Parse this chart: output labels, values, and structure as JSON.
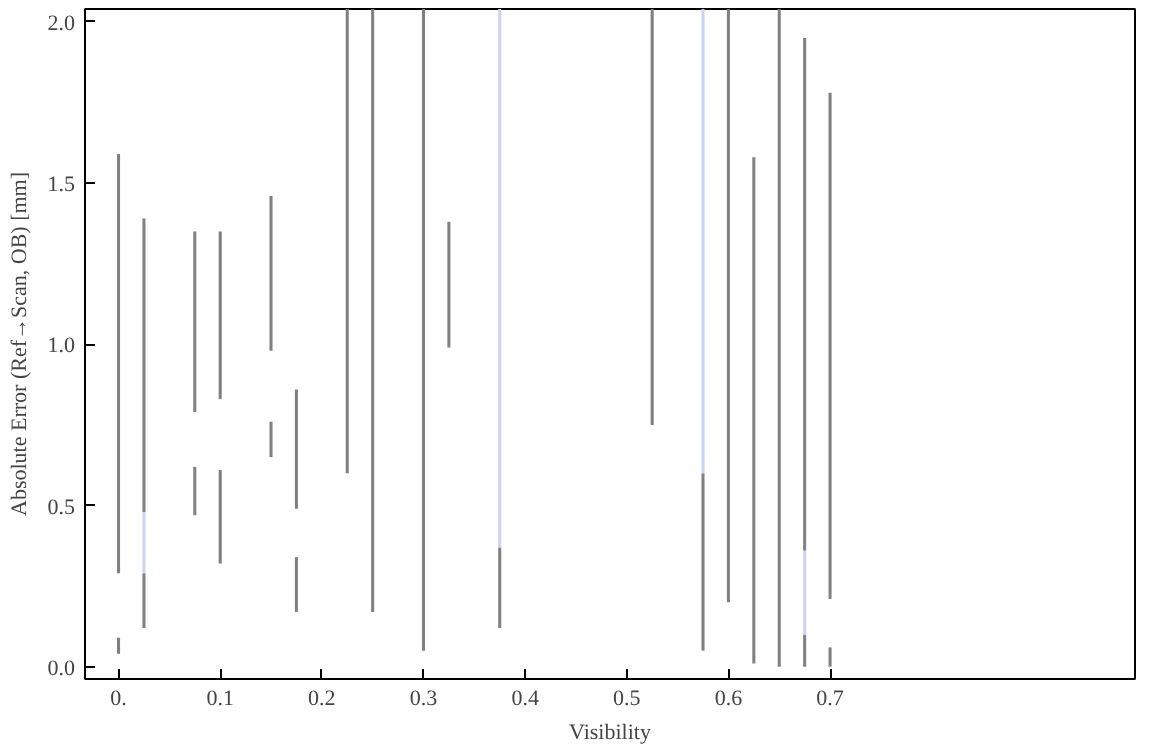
{
  "chart_data": {
    "type": "bar",
    "xlabel": "Visibility",
    "ylabel": "Absolute Error (Ref→Scan, OB) [mm]",
    "xlim": [
      -0.033,
      1.0
    ],
    "ylim": [
      -0.038,
      2.04
    ],
    "xticks": [
      {
        "value": 0,
        "label": "0."
      },
      0.1,
      0.2,
      0.3,
      0.4,
      0.5,
      0.6,
      0.7
    ],
    "yticks": [
      {
        "value": 0,
        "label": "0.0"
      },
      0.5,
      {
        "value": 1,
        "label": "1.0"
      },
      1.5,
      {
        "value": 2,
        "label": "2.0"
      }
    ],
    "grid": false,
    "series": [
      {
        "color": "#808080",
        "x": [
          0,
          0.025,
          0.075,
          0.1,
          0.15,
          0.175,
          0.225,
          0.25,
          0.3,
          0.325,
          0.525,
          0.6,
          0.625,
          0.65,
          0.675,
          0.7
        ],
        "base": [
          0.29,
          0.48,
          0.79,
          0.83,
          0.98,
          0.49,
          0.6,
          0.17,
          0.05,
          0.99,
          0.75,
          0.2,
          0.01,
          0.0,
          0.36,
          0.21
        ],
        "values": [
          1.3,
          0.91,
          0.56,
          0.52,
          0.48,
          0.37,
          1.44,
          1.87,
          1.99,
          0.39,
          1.29,
          1.84,
          1.57,
          2.04,
          1.59,
          1.57
        ]
      },
      {
        "color": "#808080",
        "x": [
          0,
          0.025,
          0.075,
          0.1,
          0.15,
          0.175,
          0.375,
          0.575,
          0.675,
          0.7
        ],
        "base": [
          0.04,
          0.12,
          0.47,
          0.32,
          0.65,
          0.17,
          0.12,
          0.05,
          0.0,
          0.0
        ],
        "values": [
          0.05,
          0.17,
          0.15,
          0.29,
          0.11,
          0.17,
          0.25,
          0.55,
          0.1,
          0.06
        ]
      },
      {
        "color": "#c8d4f0",
        "x": [
          0.025,
          0.375,
          0.575,
          0.675
        ],
        "base": [
          0.29,
          0.37,
          0.6,
          0.1
        ],
        "values": [
          0.19,
          1.67,
          1.44,
          0.26
        ]
      }
    ]
  }
}
